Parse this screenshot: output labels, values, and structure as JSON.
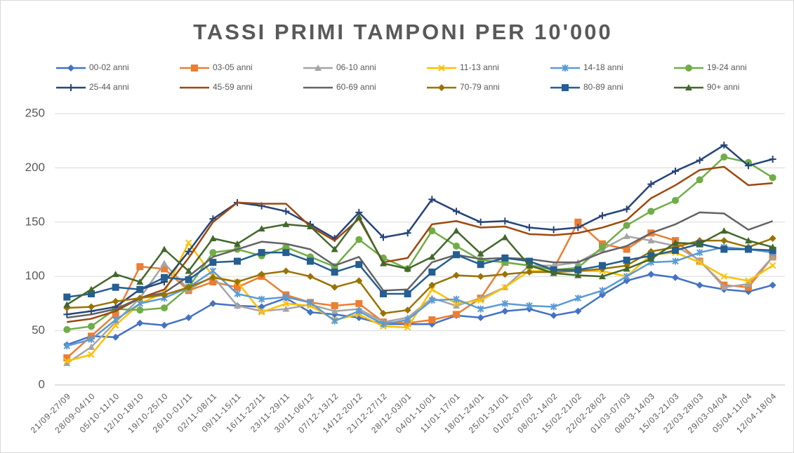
{
  "chart_data": {
    "type": "line",
    "title": "TASSI PRIMI TAMPONI PER 10'000",
    "categories": [
      "21/09-27/09",
      "28/09-04/10",
      "05/10-11/10",
      "12/10-18/10",
      "19/10-25/10",
      "26/10-01/11",
      "02/11-08/11",
      "09/11-15/11",
      "16/11-22/11",
      "23/11-29/11",
      "30/11-06/12",
      "07/12-13/12",
      "14/12-20/12",
      "21/12-27/12",
      "28/12-03/01",
      "04/01-10/01",
      "11/01-17/01",
      "18/01-24/01",
      "25/01-31/01",
      "01/02-07/02",
      "08/02-14/02",
      "15/02-21/02",
      "22/02-28/02",
      "01/03-07/03",
      "08/03-14/03",
      "15/03-21/03",
      "22/03-28/03",
      "29/03-04/04",
      "05/04-11/04",
      "12/04-18/04"
    ],
    "ylim": [
      0,
      250
    ],
    "yticks": [
      0,
      50,
      100,
      150,
      200,
      250
    ],
    "grid": true,
    "legend": "top",
    "series": [
      {
        "name": "00-02 anni",
        "color": "#4472c4",
        "marker": "diamond",
        "values": [
          37,
          45,
          44,
          57,
          55,
          62,
          75,
          73,
          72,
          80,
          67,
          65,
          62,
          56,
          56,
          56,
          64,
          62,
          68,
          70,
          64,
          68,
          83,
          96,
          102,
          99,
          92,
          88,
          86,
          92
        ]
      },
      {
        "name": "03-05 anni",
        "color": "#ed7d31",
        "marker": "square",
        "values": [
          25,
          45,
          65,
          109,
          107,
          87,
          95,
          90,
          100,
          83,
          76,
          73,
          75,
          58,
          57,
          60,
          65,
          80,
          113,
          110,
          107,
          150,
          130,
          125,
          140,
          133,
          114,
          92,
          90,
          118
        ]
      },
      {
        "name": "06-10 anni",
        "color": "#a5a5a5",
        "marker": "triangle",
        "values": [
          20,
          35,
          58,
          80,
          112,
          88,
          100,
          73,
          68,
          70,
          74,
          68,
          70,
          58,
          62,
          80,
          73,
          80,
          90,
          110,
          110,
          113,
          125,
          137,
          133,
          128,
          115,
          90,
          93,
          118
        ]
      },
      {
        "name": "11-13 anni",
        "color": "#ffc000",
        "marker": "x",
        "values": [
          22,
          28,
          55,
          75,
          85,
          131,
          100,
          95,
          67,
          75,
          73,
          60,
          65,
          54,
          53,
          88,
          75,
          78,
          90,
          105,
          105,
          105,
          105,
          100,
          120,
          122,
          113,
          100,
          96,
          110
        ]
      },
      {
        "name": "14-18 anni",
        "color": "#5b9bd5",
        "marker": "star",
        "values": [
          36,
          42,
          60,
          75,
          80,
          90,
          105,
          84,
          79,
          81,
          76,
          59,
          68,
          56,
          60,
          78,
          79,
          70,
          75,
          73,
          72,
          80,
          87,
          100,
          113,
          114,
          122,
          127,
          125,
          122
        ]
      },
      {
        "name": "19-24 anni",
        "color": "#70ad47",
        "marker": "circle",
        "values": [
          51,
          54,
          70,
          69,
          71,
          90,
          122,
          125,
          119,
          127,
          118,
          109,
          134,
          117,
          107,
          142,
          128,
          115,
          113,
          110,
          106,
          108,
          127,
          147,
          160,
          170,
          189,
          210,
          205,
          191
        ]
      },
      {
        "name": "25-44 anni",
        "color": "#264478",
        "marker": "plus",
        "values": [
          65,
          68,
          72,
          88,
          95,
          123,
          153,
          168,
          165,
          160,
          148,
          135,
          159,
          136,
          140,
          171,
          160,
          150,
          151,
          145,
          143,
          145,
          156,
          162,
          185,
          197,
          207,
          221,
          202,
          208
        ]
      },
      {
        "name": "45-59 anni",
        "color": "#9e480e",
        "marker": "none",
        "values": [
          58,
          61,
          68,
          80,
          88,
          117,
          150,
          168,
          167,
          167,
          146,
          133,
          153,
          113,
          117,
          148,
          151,
          145,
          146,
          139,
          138,
          140,
          145,
          152,
          172,
          184,
          198,
          201,
          184,
          186
        ]
      },
      {
        "name": "60-69 anni",
        "color": "#636363",
        "marker": "none",
        "values": [
          62,
          65,
          70,
          80,
          85,
          100,
          118,
          125,
          132,
          130,
          125,
          110,
          118,
          87,
          88,
          113,
          120,
          116,
          117,
          116,
          113,
          113,
          122,
          128,
          140,
          148,
          159,
          158,
          143,
          151
        ]
      },
      {
        "name": "70-79 anni",
        "color": "#997300",
        "marker": "diamond",
        "values": [
          71,
          72,
          77,
          80,
          83,
          90,
          99,
          95,
          102,
          105,
          100,
          90,
          96,
          66,
          69,
          92,
          101,
          100,
          102,
          104,
          104,
          105,
          107,
          110,
          123,
          127,
          133,
          133,
          127,
          135
        ]
      },
      {
        "name": "80-89 anni",
        "color": "#255e91",
        "marker": "square",
        "values": [
          81,
          84,
          90,
          88,
          99,
          97,
          113,
          114,
          122,
          122,
          114,
          104,
          111,
          84,
          84,
          104,
          120,
          111,
          117,
          114,
          106,
          106,
          110,
          115,
          119,
          124,
          130,
          125,
          125,
          124
        ]
      },
      {
        "name": "90+ anni",
        "color": "#43682b",
        "marker": "triangle",
        "values": [
          74,
          88,
          102,
          95,
          125,
          105,
          135,
          130,
          144,
          148,
          146,
          125,
          155,
          112,
          107,
          118,
          142,
          121,
          136,
          110,
          103,
          101,
          100,
          107,
          116,
          131,
          130,
          142,
          133,
          127
        ]
      }
    ]
  }
}
